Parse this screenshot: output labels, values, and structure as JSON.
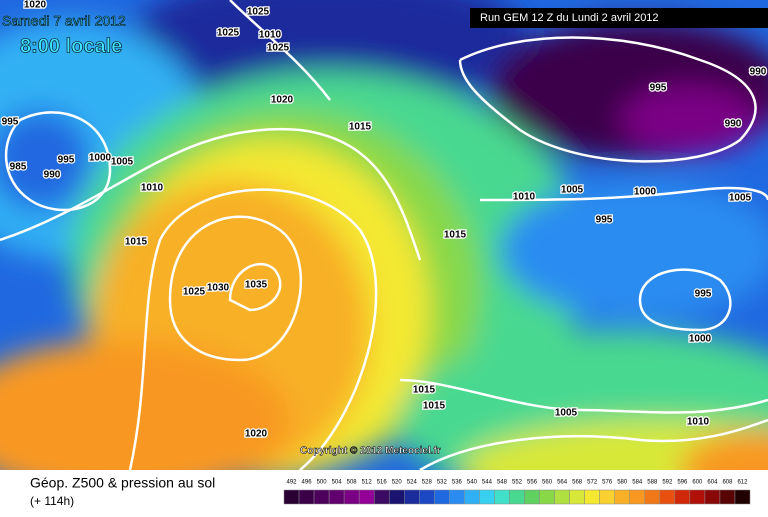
{
  "header": {
    "date": "Samedi 7 avril 2012",
    "time": "8:00 locale",
    "run": "Run GEM 12 Z du Lundi 2 avril 2012"
  },
  "copyright": "Copyright © 2012 Meteociel.fr",
  "footer": {
    "title": "Géop. Z500 & pression au sol",
    "lead": "(+ 114h)"
  },
  "isobar_labels": [
    "1020",
    "1025",
    "1025",
    "1010",
    "1025",
    "1020",
    "995",
    "1015",
    "995",
    "1000",
    "1005",
    "985",
    "990",
    "1010",
    "1015",
    "1015",
    "1025",
    "1030",
    "1035",
    "1020",
    "1015",
    "1015",
    "1005",
    "1010",
    "995",
    "990",
    "990",
    "1005",
    "1000",
    "1010",
    "995",
    "1005",
    "995",
    "1000"
  ],
  "scale": {
    "labels": [
      492,
      496,
      500,
      504,
      508,
      512,
      516,
      520,
      524,
      528,
      532,
      536,
      540,
      544,
      548,
      552,
      556,
      560,
      564,
      568,
      572,
      576,
      580,
      584,
      588,
      592,
      596,
      600,
      604,
      608,
      612
    ],
    "colors": [
      "#2a0032",
      "#3a0048",
      "#4c005c",
      "#620070",
      "#7a0084",
      "#920098",
      "#3c0c64",
      "#1a1470",
      "#1c2c9c",
      "#1c48c4",
      "#2068e0",
      "#2a8cf0",
      "#30b0f4",
      "#38d0f0",
      "#40e0c8",
      "#48d890",
      "#60d060",
      "#88d848",
      "#b0e040",
      "#d8e838",
      "#f4e830",
      "#f8d030",
      "#f8b028",
      "#f89820",
      "#f07818",
      "#e85010",
      "#d02808",
      "#b01008",
      "#880808",
      "#580404",
      "#200000"
    ]
  }
}
